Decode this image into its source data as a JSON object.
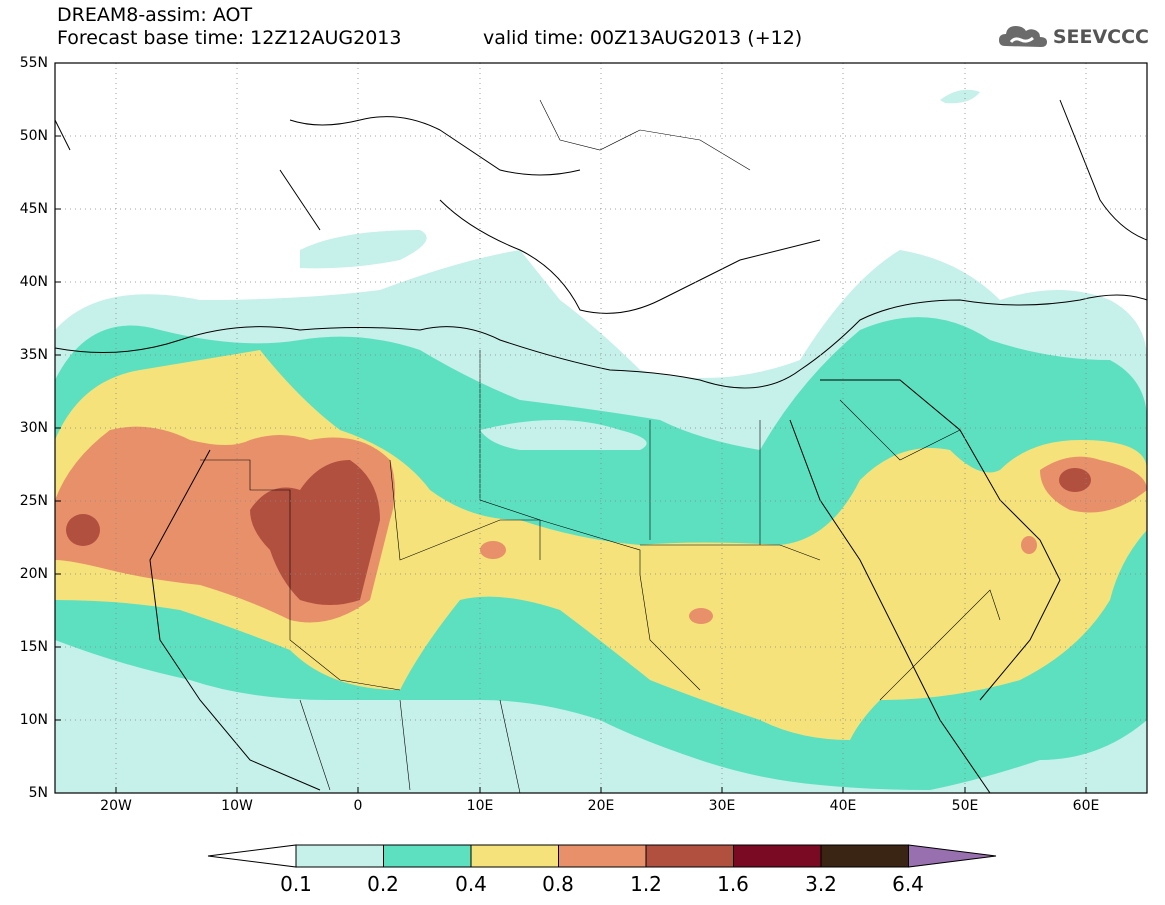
{
  "header": {
    "line1": "DREAM8-assim: AOT",
    "base": "Forecast base time: 12Z12AUG2013",
    "valid": "valid time: 00Z13AUG2013 (+12)"
  },
  "logo": {
    "icon": "cloud-logo-icon",
    "text": "SEEVCCC"
  },
  "map": {
    "lon_range": [
      -25,
      65
    ],
    "lat_range": [
      5,
      55
    ],
    "lat_labels": [
      "55N",
      "50N",
      "45N",
      "40N",
      "35N",
      "30N",
      "25N",
      "20N",
      "15N",
      "10N",
      "5N"
    ],
    "lon_labels": [
      "20W",
      "10W",
      "0",
      "10E",
      "20E",
      "30E",
      "40E",
      "50E",
      "60E"
    ],
    "grid": "dotted"
  },
  "legend": {
    "levels": [
      "0.1",
      "0.2",
      "0.4",
      "0.8",
      "1.2",
      "1.6",
      "3.2",
      "6.4"
    ],
    "colors": {
      "below": "#ffffff",
      "c01": "#c6f0ea",
      "c02": "#5ce0c0",
      "c04": "#f5e27a",
      "c08": "#e8906a",
      "c12": "#b25040",
      "c16": "#7a0a24",
      "c32": "#3a2414",
      "c64": "#9870b0"
    }
  }
}
